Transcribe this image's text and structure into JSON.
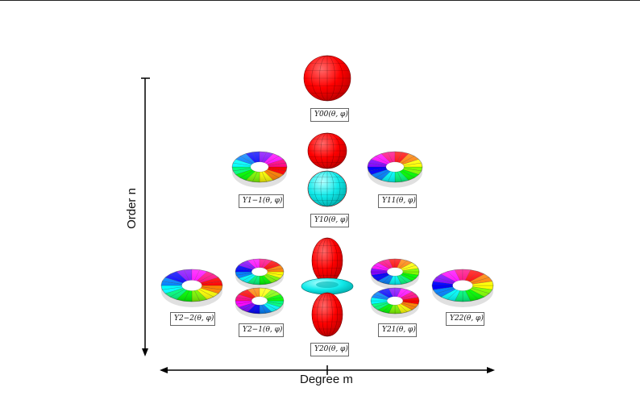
{
  "axes": {
    "vertical_label": "Order n",
    "horizontal_label": "Degree m"
  },
  "harmonics": [
    {
      "id": "Y00",
      "label": "Y00(θ, φ)",
      "shape": "sphere",
      "colors": [
        "#ff0000"
      ]
    },
    {
      "id": "Y1m1",
      "label": "Y1−1(θ, φ)",
      "shape": "torus",
      "colors": [
        "rainbow"
      ]
    },
    {
      "id": "Y10",
      "label": "Y10(θ, φ)",
      "shape": "dumbbell",
      "colors": [
        "#ff0000",
        "#00e5e5"
      ]
    },
    {
      "id": "Y11",
      "label": "Y11(θ, φ)",
      "shape": "torus",
      "colors": [
        "rainbow"
      ]
    },
    {
      "id": "Y2m2",
      "label": "Y2−2(θ, φ)",
      "shape": "torus",
      "colors": [
        "rainbow"
      ]
    },
    {
      "id": "Y2m1",
      "label": "Y2−1(θ, φ)",
      "shape": "double-torus",
      "colors": [
        "rainbow"
      ]
    },
    {
      "id": "Y20",
      "label": "Y20(θ, φ)",
      "shape": "lobes-ring",
      "colors": [
        "#ff0000",
        "#00e5e5"
      ]
    },
    {
      "id": "Y21",
      "label": "Y21(θ, φ)",
      "shape": "double-torus",
      "colors": [
        "rainbow"
      ]
    },
    {
      "id": "Y22",
      "label": "Y22(θ, φ)",
      "shape": "torus",
      "colors": [
        "rainbow"
      ]
    }
  ]
}
